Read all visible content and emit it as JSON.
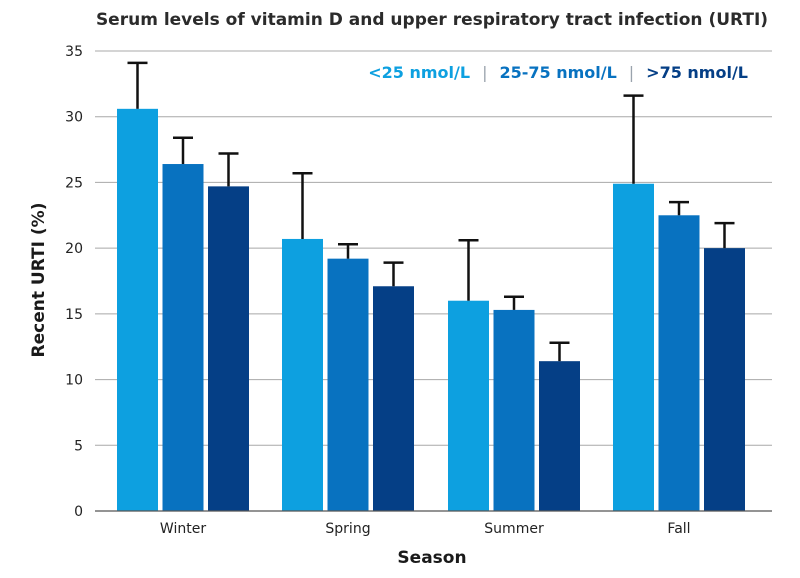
{
  "chart_data": {
    "type": "bar",
    "title": "Serum levels of vitamin D and upper respiratory tract infection (URTI)",
    "xlabel": "Season",
    "ylabel": "Recent URTI (%)",
    "categories": [
      "Winter",
      "Spring",
      "Summer",
      "Fall"
    ],
    "ylim": [
      0,
      35
    ],
    "yticks": [
      0,
      5,
      10,
      15,
      20,
      25,
      30,
      35
    ],
    "grid": true,
    "legend_position": "top-right",
    "series": [
      {
        "name": "<25 nmol/L",
        "color": "#0da0e0",
        "values": [
          30.6,
          20.7,
          16.0,
          24.9
        ],
        "error_upper": [
          34.1,
          25.7,
          20.6,
          31.6
        ]
      },
      {
        "name": "25-75 nmol/L",
        "color": "#0872c0",
        "values": [
          26.4,
          19.2,
          15.3,
          22.5
        ],
        "error_upper": [
          28.4,
          20.3,
          16.3,
          23.5
        ]
      },
      {
        "name": ">75 nmol/L",
        "color": "#053f86",
        "values": [
          24.7,
          17.1,
          11.4,
          20.0
        ],
        "error_upper": [
          27.2,
          18.9,
          12.8,
          21.9
        ]
      }
    ]
  }
}
